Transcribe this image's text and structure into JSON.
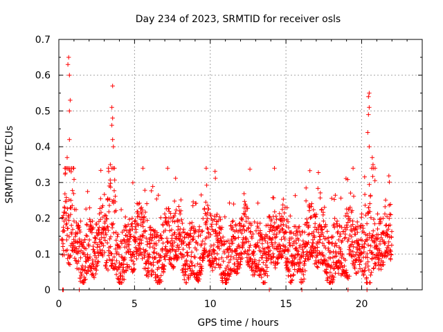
{
  "chart_data": {
    "type": "scatter",
    "title": "Day 234 of 2023, SRMTID for receiver osls",
    "xlabel": "GPS time / hours",
    "ylabel": "SRMTID / TECUs",
    "xlim": [
      0,
      24
    ],
    "ylim": [
      0,
      0.7
    ],
    "x_ticks": [
      0,
      5,
      10,
      15,
      20
    ],
    "y_ticks": [
      0,
      0.1,
      0.2,
      0.3,
      0.4,
      0.5,
      0.6,
      0.7
    ],
    "x_tick_labels": [
      "0",
      "5",
      "10",
      "15",
      "20"
    ],
    "y_tick_labels": [
      "0",
      "0.1",
      "0.2",
      "0.3",
      "0.4",
      "0.5",
      "0.6",
      "0.7"
    ],
    "grid": true,
    "marker": "+",
    "color": "#ff0000",
    "time_range_hours": [
      0.2,
      22.0
    ],
    "typical_band": [
      0.05,
      0.2
    ],
    "spikes": [
      {
        "x": 0.65,
        "y": 0.65
      },
      {
        "x": 0.6,
        "y": 0.63
      },
      {
        "x": 0.7,
        "y": 0.6
      },
      {
        "x": 0.75,
        "y": 0.53
      },
      {
        "x": 0.7,
        "y": 0.5
      },
      {
        "x": 0.55,
        "y": 0.37
      },
      {
        "x": 0.7,
        "y": 0.42
      },
      {
        "x": 3.55,
        "y": 0.57
      },
      {
        "x": 3.5,
        "y": 0.51
      },
      {
        "x": 3.55,
        "y": 0.48
      },
      {
        "x": 3.5,
        "y": 0.46
      },
      {
        "x": 3.55,
        "y": 0.42
      },
      {
        "x": 3.6,
        "y": 0.4
      },
      {
        "x": 3.4,
        "y": 0.35
      },
      {
        "x": 20.5,
        "y": 0.55
      },
      {
        "x": 20.45,
        "y": 0.54
      },
      {
        "x": 20.5,
        "y": 0.51
      },
      {
        "x": 20.45,
        "y": 0.49
      },
      {
        "x": 20.4,
        "y": 0.44
      },
      {
        "x": 20.5,
        "y": 0.4
      },
      {
        "x": 20.7,
        "y": 0.37
      },
      {
        "x": 20.75,
        "y": 0.35
      }
    ],
    "zero_points": [
      0.25,
      0.3,
      1.35,
      13.9,
      16.05,
      19.1,
      20.35
    ]
  }
}
